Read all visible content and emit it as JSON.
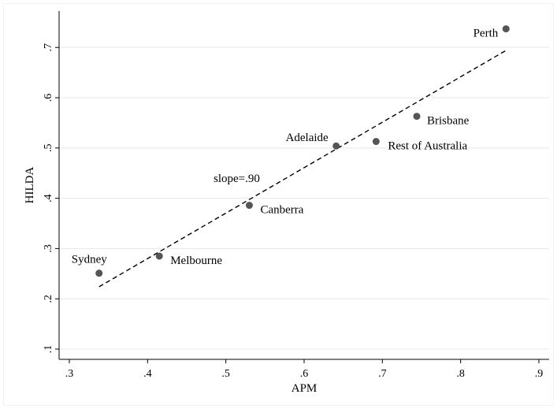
{
  "chart_data": {
    "type": "scatter",
    "xlabel": "APM",
    "ylabel": "HILDA",
    "xlim": [
      0.3,
      0.9
    ],
    "ylim": [
      0.1,
      0.75
    ],
    "xticks": [
      ".3",
      ".4",
      ".5",
      ".6",
      ".7",
      ".8",
      ".9"
    ],
    "yticks": [
      ".1",
      ".2",
      ".3",
      ".4",
      ".5",
      ".6",
      ".7"
    ],
    "grid": true,
    "points": [
      {
        "label": "Sydney",
        "x": 0.338,
        "y": 0.251
      },
      {
        "label": "Melbourne",
        "x": 0.415,
        "y": 0.285
      },
      {
        "label": "Canberra",
        "x": 0.53,
        "y": 0.386
      },
      {
        "label": "Adelaide",
        "x": 0.641,
        "y": 0.504
      },
      {
        "label": "Rest of Australia",
        "x": 0.692,
        "y": 0.513
      },
      {
        "label": "Brisbane",
        "x": 0.744,
        "y": 0.563
      },
      {
        "label": "Perth",
        "x": 0.858,
        "y": 0.737
      }
    ],
    "fit_line": {
      "x": [
        0.338,
        0.858
      ],
      "y": [
        0.224,
        0.694
      ],
      "style": "dashed"
    },
    "annotation": "slope=.90",
    "colors": {
      "points": "#555555",
      "grid": "#e8e8e8",
      "fit": "#000000"
    }
  }
}
